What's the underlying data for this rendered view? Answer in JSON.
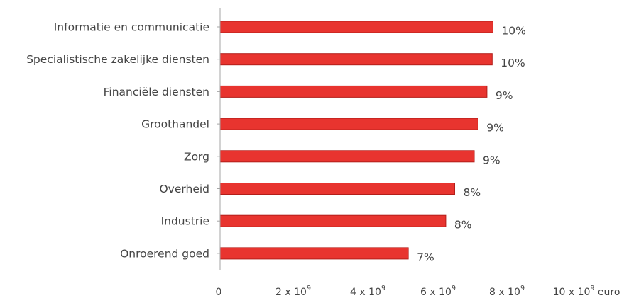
{
  "chart_data": {
    "type": "bar",
    "orientation": "horizontal",
    "categories": [
      "Informatie en communicatie",
      "Specialistische zakelijke diensten",
      "Financiële diensten",
      "Groothandel",
      "Zorg",
      "Overheid",
      "Industrie",
      "Onroerend goed"
    ],
    "values": [
      7.28,
      7.26,
      7.12,
      6.88,
      6.78,
      6.26,
      6.02,
      5.02
    ],
    "data_labels": [
      "10%",
      "10%",
      "9%",
      "9%",
      "9%",
      "8%",
      "8%",
      "7%"
    ],
    "xlim": [
      0,
      10
    ],
    "x_ticks": [
      {
        "base": "0",
        "sup": "",
        "suffix": ""
      },
      {
        "base": "2 x 10",
        "sup": "9",
        "suffix": ""
      },
      {
        "base": "4 x 10",
        "sup": "9",
        "suffix": ""
      },
      {
        "base": "6 x 10",
        "sup": "9",
        "suffix": ""
      },
      {
        "base": "8 x 10",
        "sup": "9",
        "suffix": ""
      },
      {
        "base": "10 x 10",
        "sup": "9",
        "suffix": " euro"
      }
    ],
    "unit_scale": "values in 10^9 euro",
    "grid": false,
    "legend": "none",
    "colors": {
      "bar_fill": "#e8342f",
      "bar_edge": "#b31e1a",
      "axis": "#a6a6a6",
      "text": "#444444"
    }
  }
}
